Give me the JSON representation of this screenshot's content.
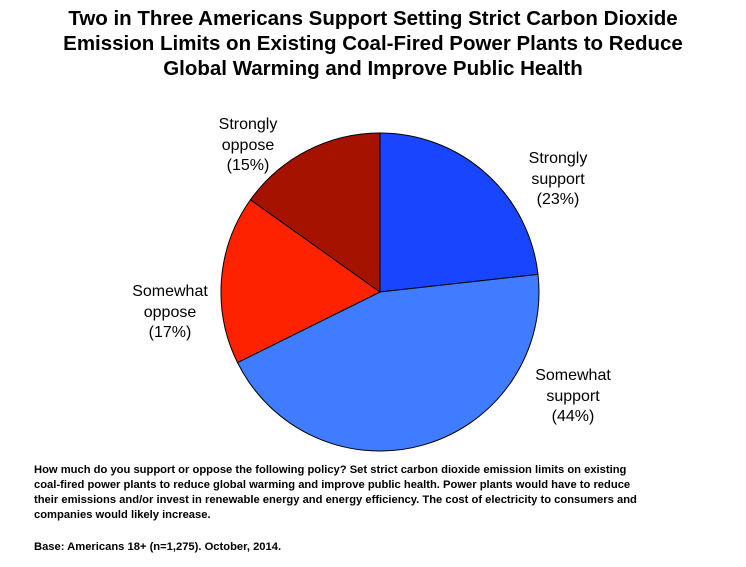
{
  "chart_data": {
    "type": "pie",
    "title_lines": [
      "Two in Three Americans Support Setting Strict Carbon Dioxide",
      "Emission Limits on Existing Coal-Fired Power Plants to Reduce",
      "Global Warming and Improve Public Health"
    ],
    "slices": [
      {
        "label_lines": [
          "Strongly",
          "support"
        ],
        "value": 23,
        "value_text": "(23%)",
        "color": "#1a45ff"
      },
      {
        "label_lines": [
          "Somewhat",
          "support"
        ],
        "value": 44,
        "value_text": "(44%)",
        "color": "#3f7cff"
      },
      {
        "label_lines": [
          "Somewhat",
          "oppose"
        ],
        "value": 17,
        "value_text": "(17%)",
        "color": "#ff2200"
      },
      {
        "label_lines": [
          "Strongly",
          "oppose"
        ],
        "value": 15,
        "value_text": "(15%)",
        "color": "#a51200"
      }
    ],
    "start_angle_deg": 0,
    "direction": "clockwise",
    "legend": "none"
  },
  "footnote": {
    "question_lines": [
      "How much do you support or oppose the following policy? Set strict carbon dioxide emission limits on existing",
      "coal-fired power plants to reduce global warming and improve public health. Power plants would have to reduce",
      "their emissions and/or invest in renewable energy and energy efficiency. The cost of electricity to consumers and",
      "companies would likely increase."
    ],
    "base": "Base: Americans 18+ (n=1,275). October, 2014."
  }
}
